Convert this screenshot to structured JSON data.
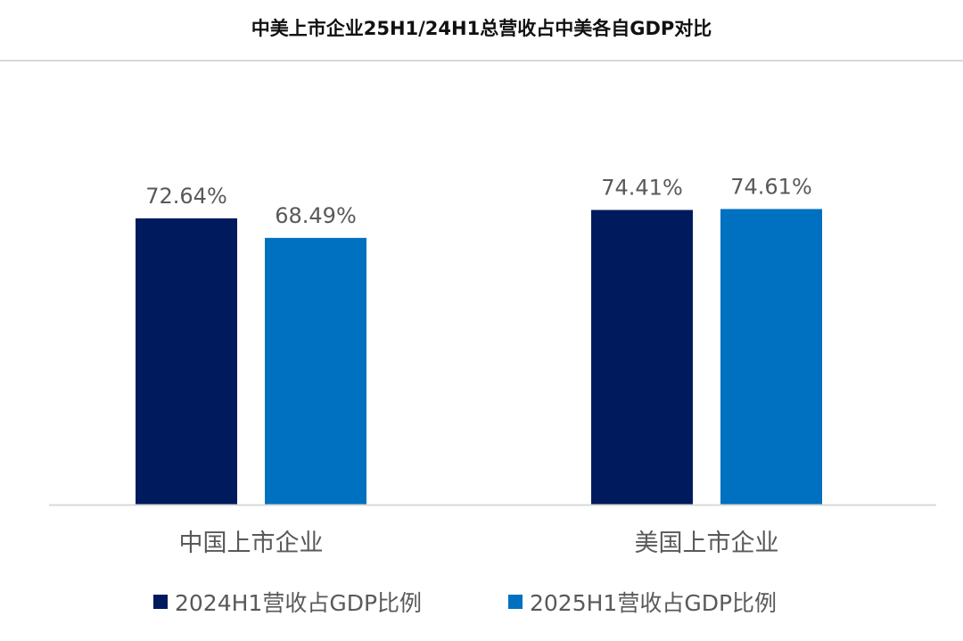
{
  "chart_data": {
    "type": "bar",
    "title": "中美上市企业25H1/24H1总营收占中美各自GDP对比",
    "categories": [
      "中国上市企业",
      "美国上市企业"
    ],
    "series": [
      {
        "name": "2024H1营收占GDP比例",
        "values": [
          72.64,
          74.41
        ],
        "labels": [
          "72.64%",
          "74.41%"
        ],
        "color": "#001a5e"
      },
      {
        "name": "2025H1营收占GDP比例",
        "values": [
          68.49,
          74.61
        ],
        "labels": [
          "68.49%",
          "74.61%"
        ],
        "color": "#0070c0"
      }
    ],
    "xlabel": "",
    "ylabel": "",
    "ylim": [
      12,
      100
    ],
    "grid": false,
    "legend": "bottom"
  }
}
